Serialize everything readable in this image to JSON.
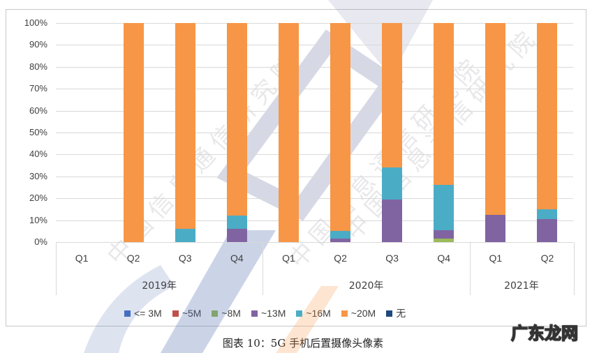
{
  "chart_data": {
    "type": "bar",
    "stacked": true,
    "percent": true,
    "title": "",
    "caption": "图表 10：5G 手机后置摄像头像素",
    "xlabel": "",
    "ylabel": "",
    "ylim": [
      0,
      100
    ],
    "yticks": [
      "0%",
      "10%",
      "20%",
      "30%",
      "40%",
      "50%",
      "60%",
      "70%",
      "80%",
      "90%",
      "100%"
    ],
    "grid": true,
    "legend_position": "bottom",
    "year_groups": [
      {
        "label": "2019年",
        "quarters": [
          "Q1",
          "Q2",
          "Q3",
          "Q4"
        ]
      },
      {
        "label": "2020年",
        "quarters": [
          "Q1",
          "Q2",
          "Q3",
          "Q4"
        ]
      },
      {
        "label": "2021年",
        "quarters": [
          "Q1",
          "Q2"
        ]
      }
    ],
    "categories": [
      "2019 Q1",
      "2019 Q2",
      "2019 Q3",
      "2019 Q4",
      "2020 Q1",
      "2020 Q2",
      "2020 Q3",
      "2020 Q4",
      "2021 Q1",
      "2021 Q2"
    ],
    "series": [
      {
        "name": "<= 3M",
        "color": "#4472c4",
        "values": [
          0,
          0,
          0,
          0,
          0,
          0,
          0,
          0,
          0,
          0
        ]
      },
      {
        "name": "~5M",
        "color": "#c0504d",
        "values": [
          0,
          0,
          0,
          0,
          0,
          0,
          0,
          0,
          0,
          0
        ]
      },
      {
        "name": "~8M",
        "color": "#9bbb59",
        "values": [
          0,
          0,
          0,
          0,
          0,
          0,
          0,
          1.5,
          0,
          0
        ]
      },
      {
        "name": "~13M",
        "color": "#8064a2",
        "values": [
          0,
          0,
          0,
          6,
          0,
          1.5,
          19.5,
          4,
          12.5,
          10.5
        ]
      },
      {
        "name": "~16M",
        "color": "#4bacc6",
        "values": [
          0,
          0,
          6,
          6,
          0,
          3.5,
          14.5,
          20.5,
          0,
          4.5
        ]
      },
      {
        "name": "~20M",
        "color": "#f79646",
        "values": [
          0,
          100,
          94,
          88,
          100,
          95,
          66,
          74,
          87.5,
          85
        ]
      },
      {
        "name": "无",
        "color": "#1f497d",
        "values": [
          0,
          0,
          0,
          0,
          0,
          0,
          0,
          0,
          0,
          0
        ]
      }
    ]
  },
  "watermark": {
    "text": "中国信息通信研究院",
    "site_logo": "广东龙网"
  }
}
